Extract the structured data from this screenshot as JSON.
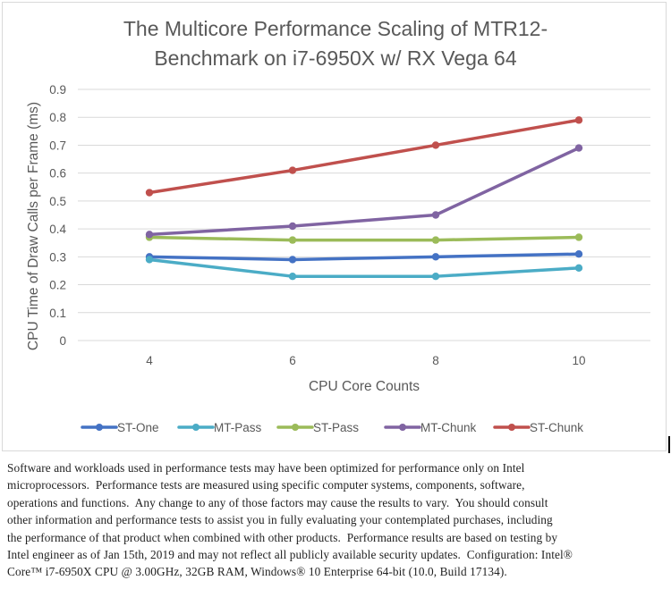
{
  "chart_data": {
    "type": "line",
    "title": [
      "The Multicore Performance Scaling of MTR12-",
      "Benchmark on i7-6950X w/ RX Vega 64"
    ],
    "xlabel": "CPU Core Counts",
    "ylabel": "CPU Time of Draw Calls per Frame (ms)",
    "categories": [
      "4",
      "6",
      "8",
      "10"
    ],
    "ylim": [
      0,
      0.9
    ],
    "yticks": [
      "0",
      "0.1",
      "0.2",
      "0.3",
      "0.4",
      "0.5",
      "0.6",
      "0.7",
      "0.8",
      "0.9"
    ],
    "grid": true,
    "legend_position": "bottom",
    "series": [
      {
        "name": "ST-One",
        "color": "#4472c4",
        "values": [
          0.3,
          0.29,
          0.3,
          0.31
        ]
      },
      {
        "name": "MT-Pass",
        "color": "#4bacc6",
        "values": [
          0.29,
          0.23,
          0.23,
          0.26
        ]
      },
      {
        "name": "ST-Pass",
        "color": "#9bbb59",
        "values": [
          0.37,
          0.36,
          0.36,
          0.37
        ]
      },
      {
        "name": "MT-Chunk",
        "color": "#8064a2",
        "values": [
          0.38,
          0.41,
          0.45,
          0.69
        ]
      },
      {
        "name": "ST-Chunk",
        "color": "#c0504d",
        "values": [
          0.53,
          0.61,
          0.7,
          0.79
        ]
      }
    ]
  },
  "footnote": "Software and workloads used in performance tests may have been optimized for performance only on Intel microprocessors.  Performance tests are measured using specific computer systems, components, software, operations and functions.  Any change to any of those factors may cause the results to vary.  You should consult other information and performance tests to assist you in fully evaluating your contemplated purchases, including the performance of that product when combined with other products.  Performance results are based on testing by Intel engineer as of Jan 15th, 2019 and may not reflect all publicly available security updates.  Configuration: Intel® Core™ i7-6950X CPU @ 3.00GHz, 32GB RAM, Windows® 10 Enterprise 64-bit (10.0, Build 17134).",
  "footnote_lines": [
    "Software and workloads used in performance tests may have been optimized for performance only on Intel",
    "microprocessors.  Performance tests are measured using specific computer systems, components, software,",
    "operations and functions.  Any change to any of those factors may cause the results to vary.  You should consult",
    "other information and performance tests to assist you in fully evaluating your contemplated purchases, including",
    "the performance of that product when combined with other products.  Performance results are based on testing by",
    "Intel engineer as of Jan 15th, 2019 and may not reflect all publicly available security updates.  Configuration: Intel®",
    "Core™ i7-6950X CPU @ 3.00GHz, 32GB RAM, Windows® 10 Enterprise 64-bit (10.0, Build 17134)."
  ]
}
